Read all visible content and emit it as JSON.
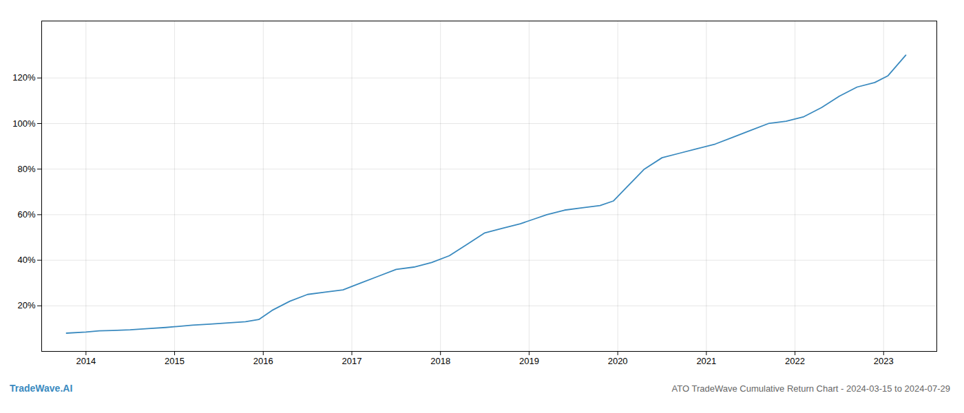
{
  "chart_data": {
    "type": "line",
    "title": "ATO TradeWave Cumulative Return Chart - 2024-03-15 to 2024-07-29",
    "annotations": [
      {
        "text": "TradeWave.AI"
      }
    ],
    "color": "#3a8abf",
    "x": [
      2013.78,
      2014.0,
      2014.15,
      2014.3,
      2014.5,
      2014.7,
      2014.9,
      2015.05,
      2015.2,
      2015.4,
      2015.6,
      2015.8,
      2015.95,
      2016.1,
      2016.3,
      2016.5,
      2016.7,
      2016.9,
      2017.1,
      2017.3,
      2017.5,
      2017.7,
      2017.9,
      2018.1,
      2018.3,
      2018.5,
      2018.7,
      2018.9,
      2019.05,
      2019.2,
      2019.4,
      2019.6,
      2019.8,
      2019.95,
      2020.1,
      2020.3,
      2020.5,
      2020.7,
      2020.9,
      2021.1,
      2021.3,
      2021.5,
      2021.7,
      2021.9,
      2022.1,
      2022.3,
      2022.5,
      2022.7,
      2022.9,
      2023.05,
      2023.25
    ],
    "values": [
      8,
      8.5,
      9,
      9.2,
      9.5,
      10,
      10.5,
      11,
      11.5,
      12,
      12.5,
      13,
      14,
      18,
      22,
      25,
      26,
      27,
      30,
      33,
      36,
      37,
      39,
      42,
      47,
      52,
      54,
      56,
      58,
      60,
      62,
      63,
      64,
      66,
      72,
      80,
      85,
      87,
      89,
      91,
      94,
      97,
      100,
      101,
      103,
      107,
      112,
      116,
      118,
      121,
      130
    ],
    "xlim": [
      2013.5,
      2023.6
    ],
    "xticks": [
      2014,
      2015,
      2016,
      2017,
      2018,
      2019,
      2020,
      2021,
      2022,
      2023
    ],
    "ylim": [
      0,
      145
    ],
    "yticks": [
      {
        "value": 20,
        "label": "20%"
      },
      {
        "value": 40,
        "label": "40%"
      },
      {
        "value": 60,
        "label": "60%"
      },
      {
        "value": 80,
        "label": "80%"
      },
      {
        "value": 100,
        "label": "100%"
      },
      {
        "value": 120,
        "label": "120%"
      }
    ],
    "grid": true
  }
}
